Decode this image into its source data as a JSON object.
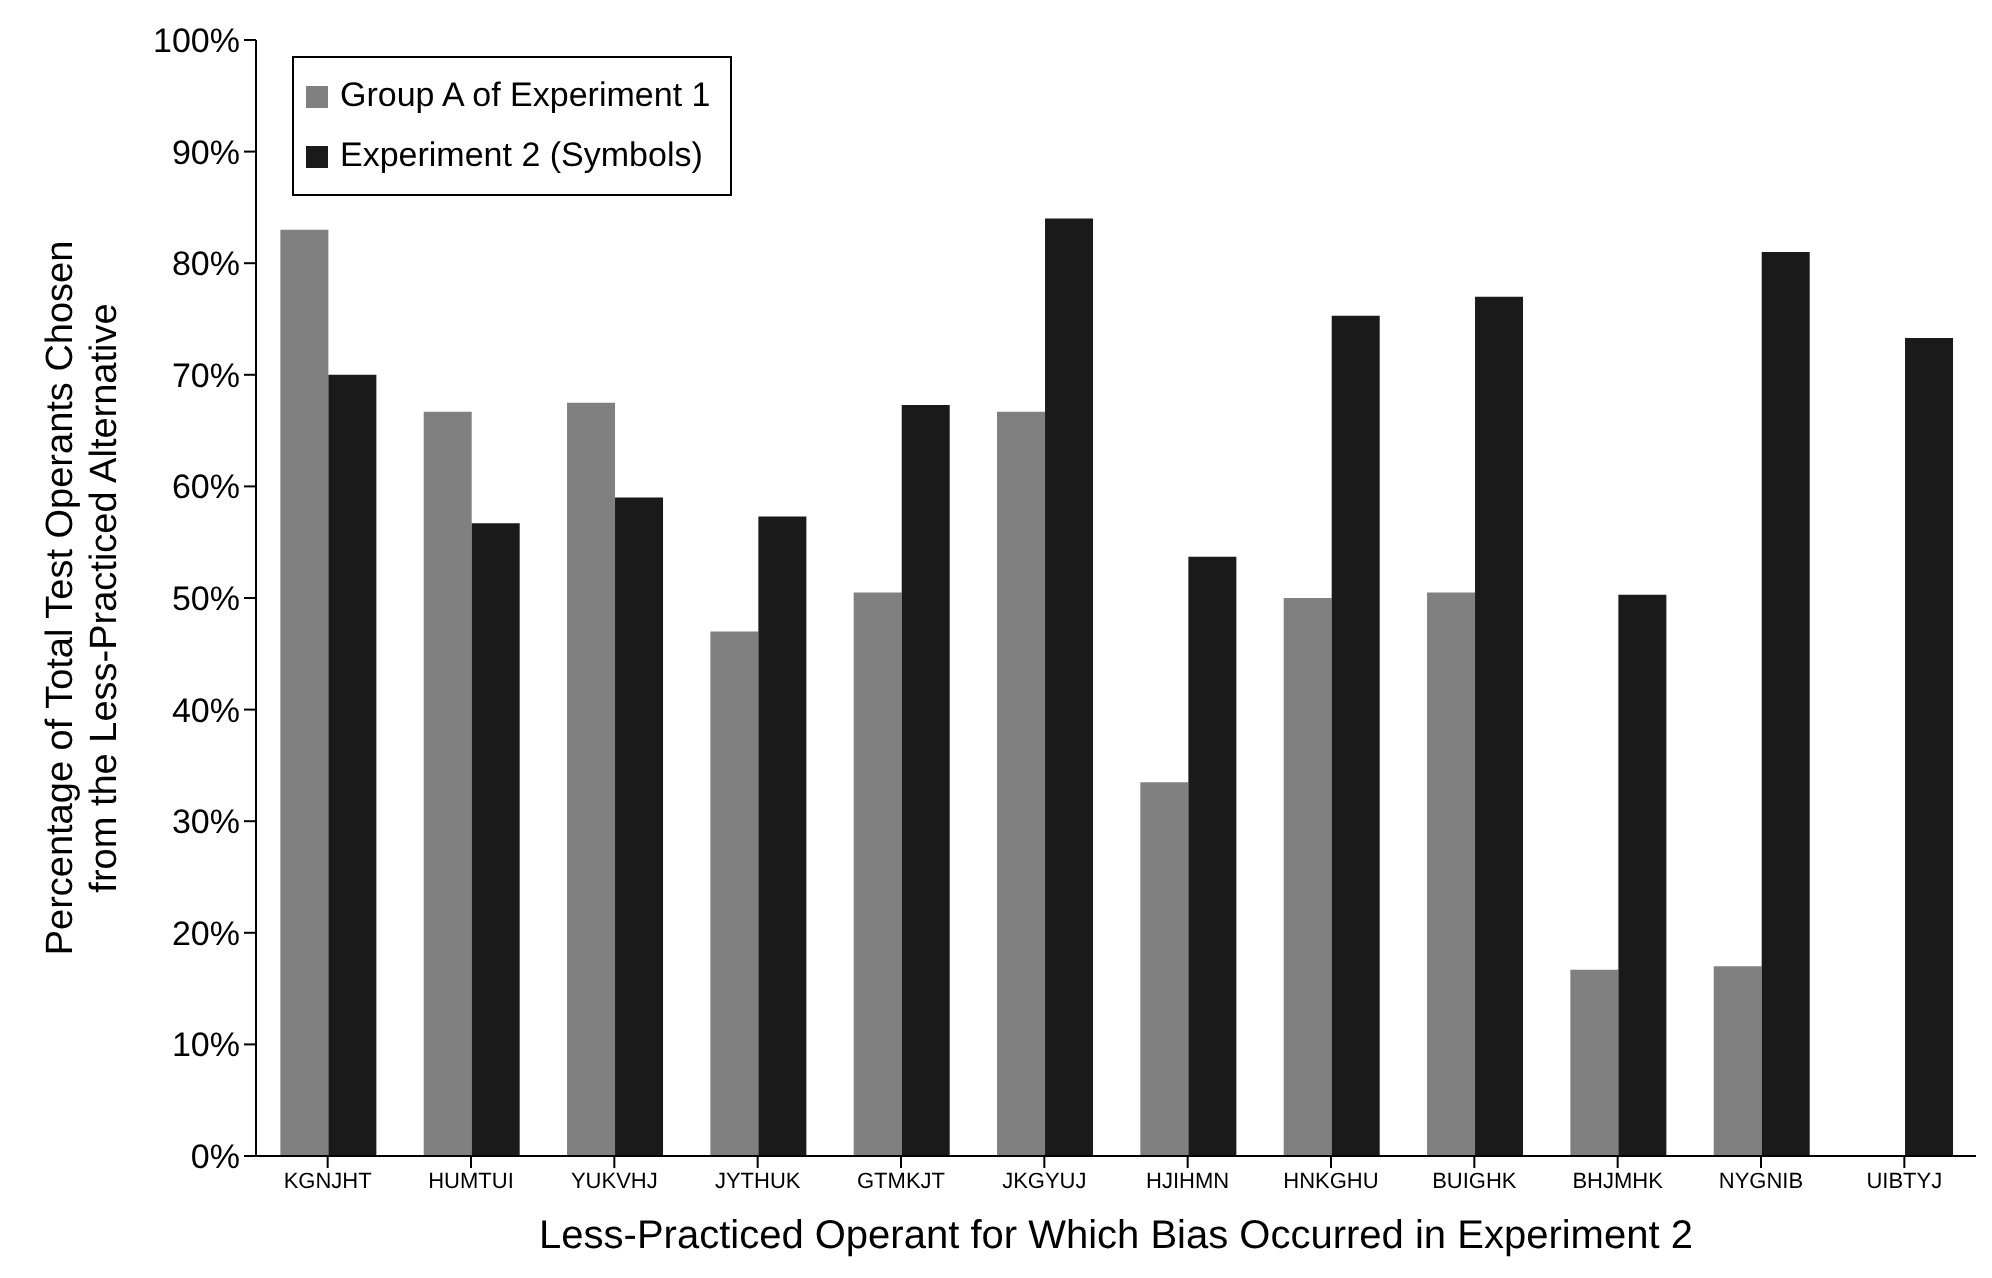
{
  "chart_data": {
    "type": "bar",
    "xlabel": "Less-Practiced Operant for Which Bias Occurred in Experiment 2",
    "ylabel": "Percentage of Total Test Operants Chosen from the Less-Practiced Alternative",
    "categories": [
      "KGNJHT",
      "HUMTUI",
      "YUKVHJ",
      "JYTHUK",
      "GTMKJT",
      "JKGYUJ",
      "HJIHMN",
      "HNKGHU",
      "BUIGHK",
      "BHJMHK",
      "NYGNIB",
      "UIBTYJ"
    ],
    "series": [
      {
        "name": "Group A of Experiment 1",
        "color": "#808080",
        "values": [
          83,
          66.7,
          67.5,
          47,
          50.5,
          66.7,
          33.5,
          50,
          50.5,
          16.7,
          17,
          null
        ]
      },
      {
        "name": "Experiment 2 (Symbols)",
        "color": "#1a1a1a",
        "values": [
          70,
          56.7,
          59,
          57.3,
          67.3,
          84,
          53.7,
          75.3,
          77,
          50.3,
          81,
          73.3
        ]
      }
    ],
    "ylim": [
      0,
      100
    ],
    "yticks": [
      {
        "value": 0,
        "label": "0%"
      },
      {
        "value": 10,
        "label": "10%"
      },
      {
        "value": 20,
        "label": "20%"
      },
      {
        "value": 30,
        "label": "30%"
      },
      {
        "value": 40,
        "label": "40%"
      },
      {
        "value": 50,
        "label": "50%"
      },
      {
        "value": 60,
        "label": "60%"
      },
      {
        "value": 70,
        "label": "70%"
      },
      {
        "value": 80,
        "label": "80%"
      },
      {
        "value": 90,
        "label": "90%"
      },
      {
        "value": 100,
        "label": "100%"
      }
    ],
    "grid": false,
    "legend": "top left"
  }
}
